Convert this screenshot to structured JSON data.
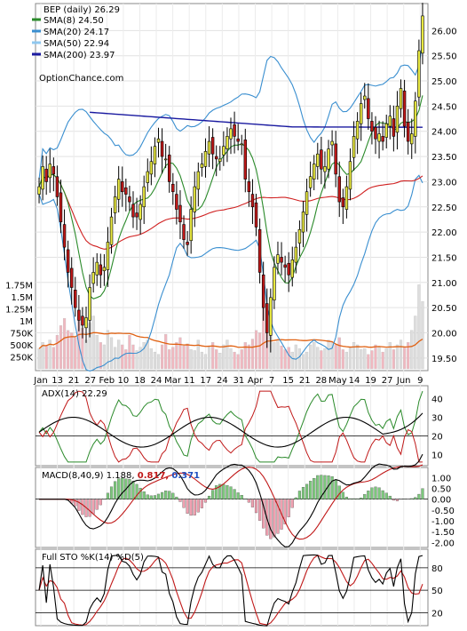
{
  "chart_data": {
    "type": "candlestick",
    "symbol_line": "BEP (daily) 26.29",
    "watermark": "OptionChance.com",
    "legend": [
      {
        "label": "SMA(8) 24.50",
        "color": "#2a8a2a"
      },
      {
        "label": "SMA(20) 24.17",
        "color": "#3a8fd0"
      },
      {
        "label": "SMA(50) 22.94",
        "color": "#8fc8f0"
      },
      {
        "label": "SMA(200) 23.97",
        "color": "#1a1aa0"
      }
    ],
    "colors": {
      "up": "#e8e840",
      "down": "#c01818",
      "ema": "#d02020",
      "volume": "#f0b8c0",
      "volume_ma": "#e06010"
    },
    "price_axis": {
      "range": [
        19.25,
        26.5
      ],
      "ticks": [
        "26.00",
        "25.50",
        "25.00",
        "24.50",
        "24.00",
        "23.50",
        "23.00",
        "22.50",
        "22.00",
        "21.50",
        "21.00",
        "20.50",
        "20.00",
        "19.50"
      ]
    },
    "volume_axis": {
      "ticks": [
        "1.75M",
        "1.5M",
        "1.25M",
        "1M",
        "750K",
        "500K",
        "250K"
      ]
    },
    "x_axis_labels": [
      "Jan",
      "13",
      "21",
      "27",
      "Feb",
      "10",
      "18",
      "24",
      "Mar",
      "11",
      "17",
      "24",
      "31",
      "Apr",
      "7",
      "15",
      "21",
      "28",
      "May",
      "14",
      "19",
      "27",
      "Jun",
      "9"
    ],
    "closes": [
      22.9,
      23.3,
      23.0,
      23.35,
      23.15,
      22.7,
      22.2,
      21.7,
      21.2,
      20.9,
      20.5,
      20.25,
      20.15,
      20.3,
      20.9,
      21.2,
      21.4,
      21.15,
      21.3,
      21.8,
      22.3,
      22.7,
      23.05,
      22.8,
      22.75,
      22.6,
      22.3,
      22.3,
      22.55,
      22.9,
      23.2,
      23.4,
      23.7,
      23.85,
      23.5,
      23.45,
      23.0,
      22.8,
      22.45,
      22.2,
      21.85,
      21.75,
      22.45,
      22.9,
      23.2,
      23.35,
      23.6,
      23.8,
      23.55,
      23.45,
      23.45,
      23.7,
      23.9,
      24.05,
      23.9,
      23.8,
      23.75,
      23.05,
      22.8,
      22.5,
      22.1,
      21.2,
      20.5,
      20.0,
      20.7,
      21.3,
      21.55,
      21.4,
      21.3,
      21.15,
      21.45,
      21.7,
      22.05,
      22.4,
      22.8,
      23.1,
      23.35,
      23.55,
      23.25,
      23.3,
      23.65,
      23.8,
      23.15,
      22.6,
      22.5,
      22.9,
      23.4,
      23.9,
      24.2,
      24.55,
      24.7,
      24.25,
      24.0,
      23.85,
      23.95,
      23.8,
      24.15,
      24.3,
      23.9,
      24.5,
      24.85,
      24.1,
      23.8,
      23.95,
      24.6,
      25.6,
      26.29
    ],
    "volume_values": [
      0.42,
      0.55,
      0.48,
      0.6,
      0.45,
      0.7,
      0.9,
      1.05,
      0.8,
      0.75,
      0.65,
      1.2,
      0.85,
      0.6,
      0.95,
      1.1,
      0.7,
      0.55,
      0.5,
      0.8,
      0.65,
      0.45,
      0.6,
      0.5,
      0.4,
      0.7,
      0.5,
      0.38,
      0.45,
      0.55,
      0.6,
      0.42,
      0.35,
      0.3,
      0.5,
      0.72,
      0.4,
      0.45,
      0.55,
      0.65,
      0.48,
      0.52,
      0.4,
      0.38,
      0.6,
      0.35,
      0.3,
      0.45,
      0.55,
      0.4,
      0.33,
      0.5,
      0.6,
      0.42,
      0.35,
      0.3,
      0.4,
      0.55,
      0.5,
      0.62,
      0.8,
      0.75,
      1.5,
      1.25,
      0.7,
      0.55,
      0.6,
      0.48,
      0.4,
      0.45,
      0.35,
      0.5,
      0.42,
      0.3,
      0.35,
      0.5,
      0.55,
      0.45,
      0.38,
      0.42,
      0.6,
      0.55,
      0.5,
      0.65,
      0.4,
      0.35,
      0.45,
      0.55,
      0.5,
      0.4,
      0.42,
      0.3,
      0.38,
      0.5,
      0.45,
      0.35,
      0.42,
      0.55,
      0.4,
      0.5,
      0.6,
      0.45,
      0.55,
      0.8,
      1.1,
      1.75,
      1.4
    ],
    "volume_ma_level": 0.5,
    "adx": {
      "title": "ADX(14) 22.29",
      "ticks": [
        "40",
        "30",
        "20",
        "10"
      ]
    },
    "macd": {
      "title": "MACD(8,40,9) 1.188,",
      "signal_text": "0.817,",
      "hist_text": "0.371",
      "signal_color": "#c01818",
      "hist_color": "#2050c0",
      "ticks": [
        "1.00",
        "0.50",
        "0.00",
        "-0.50",
        "-1.00",
        "-1.50",
        "-2.00"
      ]
    },
    "sto": {
      "title": "Full STO %K(14) %D(5)",
      "ticks": [
        "80",
        "50",
        "20"
      ]
    }
  }
}
